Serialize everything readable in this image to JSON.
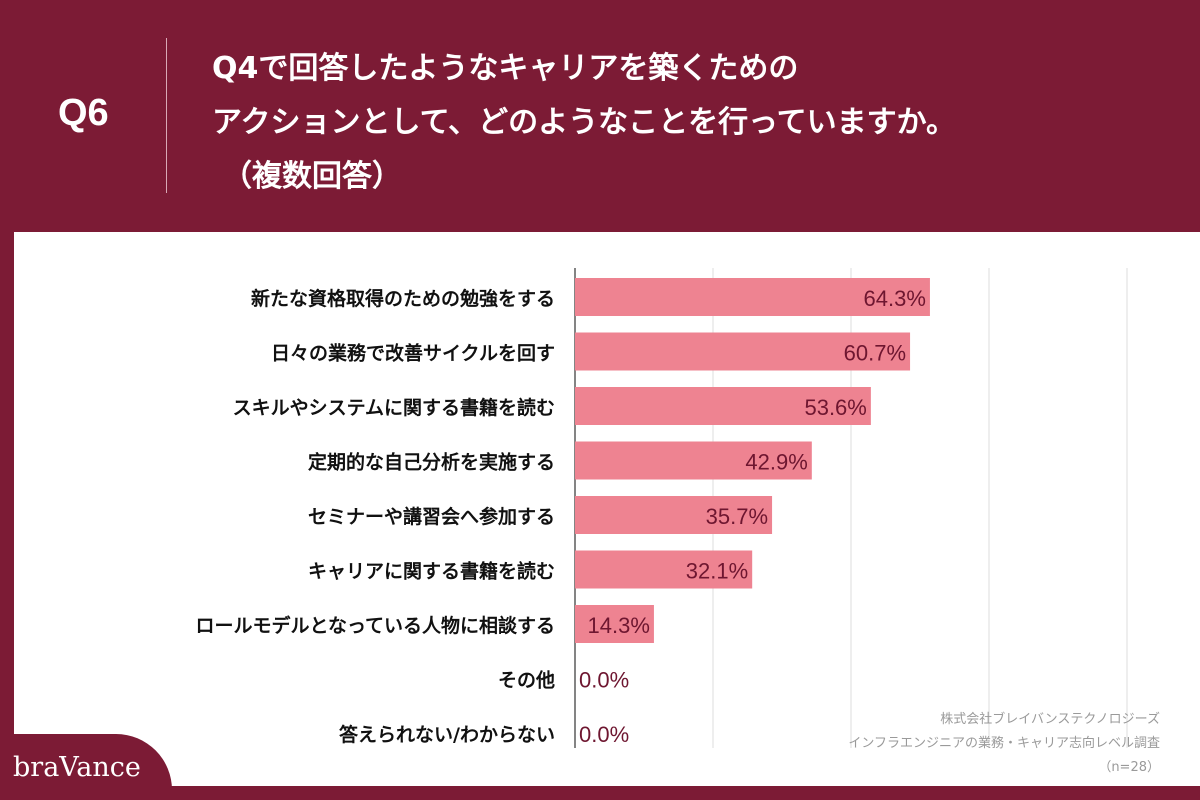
{
  "header": {
    "q_number": "Q6",
    "title_lines": [
      "Q4で回答したようなキャリアを築くための",
      "アクションとして、どのようなことを行っていますか。",
      "（複数回答）"
    ]
  },
  "brand": {
    "name": "braVance"
  },
  "source": {
    "company": "株式会社ブレイバンステクノロジーズ",
    "survey": "インフラエンジニアの業務・キャリア志向レベル調査",
    "sample": "（n=28）"
  },
  "colors": {
    "background": "#7c1b35",
    "bar": "#ee8391",
    "value_text": "#6e1630",
    "grid": "#dcdcdc"
  },
  "chart_data": {
    "type": "bar",
    "orientation": "horizontal",
    "categories": [
      "新たな資格取得のための勉強をする",
      "日々の業務で改善サイクルを回す",
      "スキルやシステムに関する書籍を読む",
      "定期的な自己分析を実施する",
      "セミナーや講習会へ参加する",
      "キャリアに関する書籍を読む",
      "ロールモデルとなっている人物に相談する",
      "その他",
      "答えられない/わからない"
    ],
    "values": [
      64.3,
      60.7,
      53.6,
      42.9,
      35.7,
      32.1,
      14.3,
      0.0,
      0.0
    ],
    "value_labels": [
      "64.3%",
      "60.7%",
      "53.6%",
      "42.9%",
      "35.7%",
      "32.1%",
      "14.3%",
      "0.0%",
      "0.0%"
    ],
    "xlim": [
      0,
      100
    ],
    "grid": true,
    "gridlines": [
      0,
      25,
      50,
      75,
      100
    ]
  }
}
